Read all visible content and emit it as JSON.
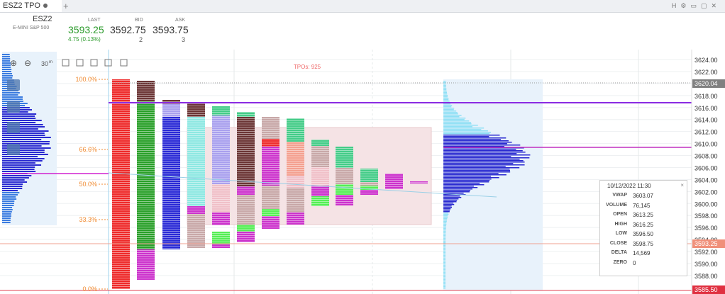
{
  "tab": {
    "title": "ESZ2 TPO"
  },
  "header": {
    "symbol": "ESZ2",
    "description": "E-MINI S&P 500",
    "last_label": "LAST",
    "last": "3593.25",
    "change": "4.75 (0.13%)",
    "bid_label": "BID",
    "bid": "3592.75",
    "bid_size": "2",
    "ask_label": "ASK",
    "ask": "3593.75",
    "ask_size": "3"
  },
  "toolbar": {
    "timeframe": "30",
    "timeframe_unit": "m"
  },
  "chart": {
    "tpo_count": "TPOs: 925",
    "percent_labels": [
      "100.0%",
      "66.6%",
      "50.0%",
      "33.3%",
      "0.0%"
    ],
    "price_ticks": [
      "3624.00",
      "3622.00",
      "3620.00",
      "3618.00",
      "3616.00",
      "3614.00",
      "3612.00",
      "3610.00",
      "3608.00",
      "3606.00",
      "3604.00",
      "3602.00",
      "3600.00",
      "3598.00",
      "3596.00",
      "3594.00",
      "3592.00",
      "3590.00",
      "3588.00"
    ],
    "marker_labels": [
      "3620.04",
      "3593.25",
      "3585.50"
    ]
  },
  "info": {
    "date": "10/12/2022 11:30",
    "rows": [
      [
        "VWAP",
        "3603.07"
      ],
      [
        "VOLUME",
        "76,145"
      ],
      [
        "OPEN",
        "3613.25"
      ],
      [
        "HIGH",
        "3616.25"
      ],
      [
        "LOW",
        "3596.50"
      ],
      [
        "CLOSE",
        "3598.75"
      ],
      [
        "DELTA",
        "14,569"
      ],
      [
        "ZERO",
        "0"
      ]
    ]
  }
}
